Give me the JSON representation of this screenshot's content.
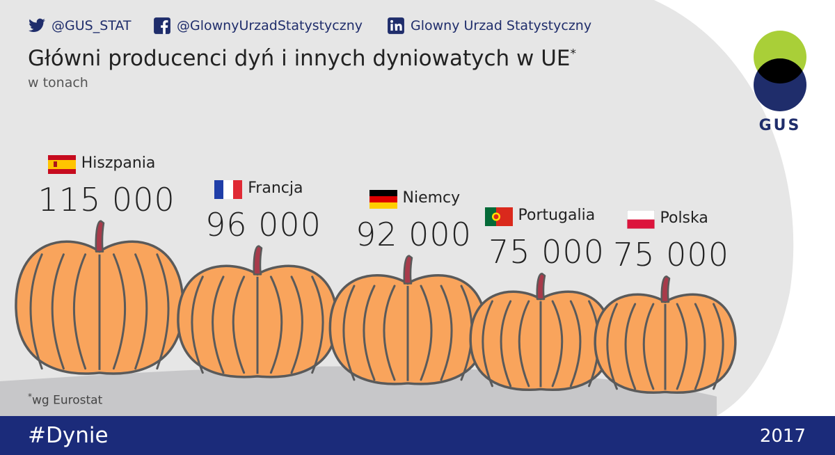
{
  "header": {
    "twitter": "@GUS_STAT",
    "facebook": "@GlownyUrzadStatystyczny",
    "linkedin": "Glowny Urzad Statystyczny"
  },
  "title": "Główni producenci dyń i innych dyniowatych w UE",
  "title_marker": "*",
  "subtitle": "w tonach",
  "logo_text": "GUS",
  "note_marker": "*",
  "note": "wg Eurostat",
  "footer": {
    "hashtag": "#Dynie",
    "year": "2017"
  },
  "colors": {
    "navy": "#1b2b7a",
    "pumpkin": "#f9a45c",
    "outline": "#5a5a5a",
    "stem": "#a83a4a",
    "bg_gray": "#e6e6e6",
    "logo_green": "#a9cf38"
  },
  "icons": [
    "twitter-icon",
    "facebook-icon",
    "linkedin-icon"
  ],
  "chart_data": {
    "type": "bar",
    "unit": "w tonach",
    "categories": [
      "Hiszpania",
      "Francja",
      "Niemcy",
      "Portugalia",
      "Polska"
    ],
    "values": [
      115000,
      96000,
      92000,
      75000,
      75000
    ],
    "value_labels": [
      "115 000",
      "96 000",
      "92 000",
      "75 000",
      "75 000"
    ],
    "flags": [
      "spain-flag",
      "france-flag",
      "germany-flag",
      "portugal-flag",
      "poland-flag"
    ]
  }
}
